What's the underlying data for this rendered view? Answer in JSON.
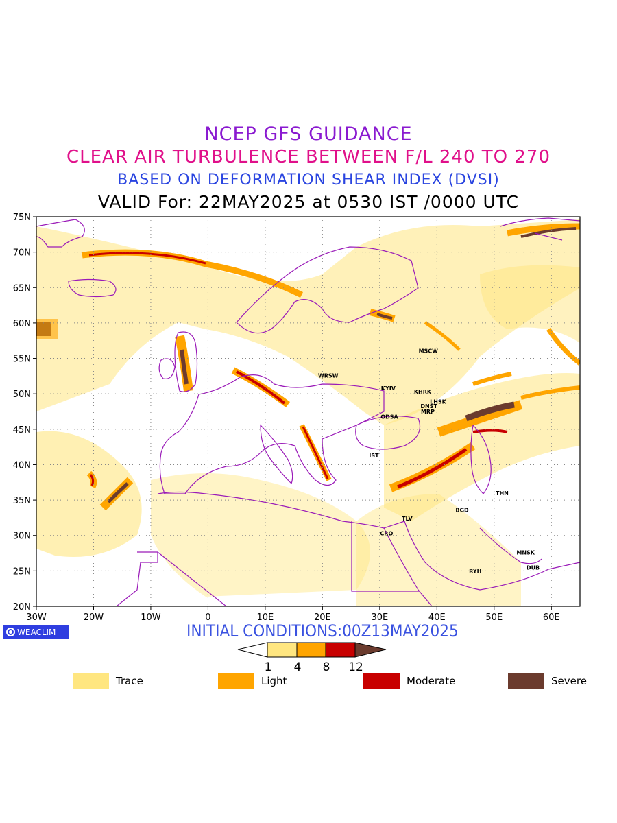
{
  "titles": {
    "line1": {
      "text": "NCEP GFS GUIDANCE",
      "color": "#8a1ad0"
    },
    "line2": {
      "text": "CLEAR AIR TURBULENCE BETWEEN F/L 240 TO 270",
      "color": "#e0108a"
    },
    "line3": {
      "text": "BASED ON DEFORMATION SHEAR INDEX (DVSI)",
      "color": "#2a45e0"
    },
    "line4": {
      "text": "VALID For: 22MAY2025 at 0530 IST /0000 UTC",
      "color": "#000000"
    }
  },
  "map": {
    "lat_range": [
      20,
      75
    ],
    "lon_range": [
      -30,
      65
    ],
    "lat_ticks": [
      "75N",
      "70N",
      "65N",
      "60N",
      "55N",
      "50N",
      "45N",
      "40N",
      "35N",
      "30N",
      "25N",
      "20N"
    ],
    "lon_ticks": [
      "30W",
      "20W",
      "10W",
      "0",
      "10E",
      "20E",
      "30E",
      "40E",
      "50E",
      "60E"
    ],
    "border_color": "#9a1ab8",
    "cities": [
      {
        "name": "MSCW",
        "lon": 38.5,
        "lat": 55.8
      },
      {
        "name": "WRSW",
        "lon": 21.0,
        "lat": 52.3
      },
      {
        "name": "KYIV",
        "lon": 31.5,
        "lat": 50.5
      },
      {
        "name": "KHRK",
        "lon": 37.5,
        "lat": 50.0
      },
      {
        "name": "LHSK",
        "lon": 40.2,
        "lat": 48.6
      },
      {
        "name": "DNST",
        "lon": 38.6,
        "lat": 48.0
      },
      {
        "name": "MRP",
        "lon": 38.4,
        "lat": 47.2
      },
      {
        "name": "ODSA",
        "lon": 31.7,
        "lat": 46.5
      },
      {
        "name": "IST",
        "lon": 29.0,
        "lat": 41.0
      },
      {
        "name": "THN",
        "lon": 51.4,
        "lat": 35.7
      },
      {
        "name": "BGD",
        "lon": 44.4,
        "lat": 33.3
      },
      {
        "name": "TLV",
        "lon": 34.8,
        "lat": 32.1
      },
      {
        "name": "CRO",
        "lon": 31.2,
        "lat": 30.0
      },
      {
        "name": "MNSK",
        "lon": 55.5,
        "lat": 27.3
      },
      {
        "name": "DUB",
        "lon": 56.8,
        "lat": 25.2
      },
      {
        "name": "RYH",
        "lon": 46.7,
        "lat": 24.7
      }
    ]
  },
  "footer": {
    "logo_text": "WEACLIM",
    "initial_conditions": "INITIAL CONDITIONS:00Z13MAY2025"
  },
  "colorbar": {
    "ticks": [
      "1",
      "4",
      "8",
      "12"
    ],
    "colors": [
      "#ffffff",
      "#ffe680",
      "#ffa500",
      "#c80000",
      "#6b3b2e"
    ]
  },
  "legend": [
    {
      "label": "Trace",
      "color": "#ffe680"
    },
    {
      "label": "Light",
      "color": "#ffa500"
    },
    {
      "label": "Moderate",
      "color": "#c80000"
    },
    {
      "label": "Severe",
      "color": "#6b3b2e"
    }
  ]
}
